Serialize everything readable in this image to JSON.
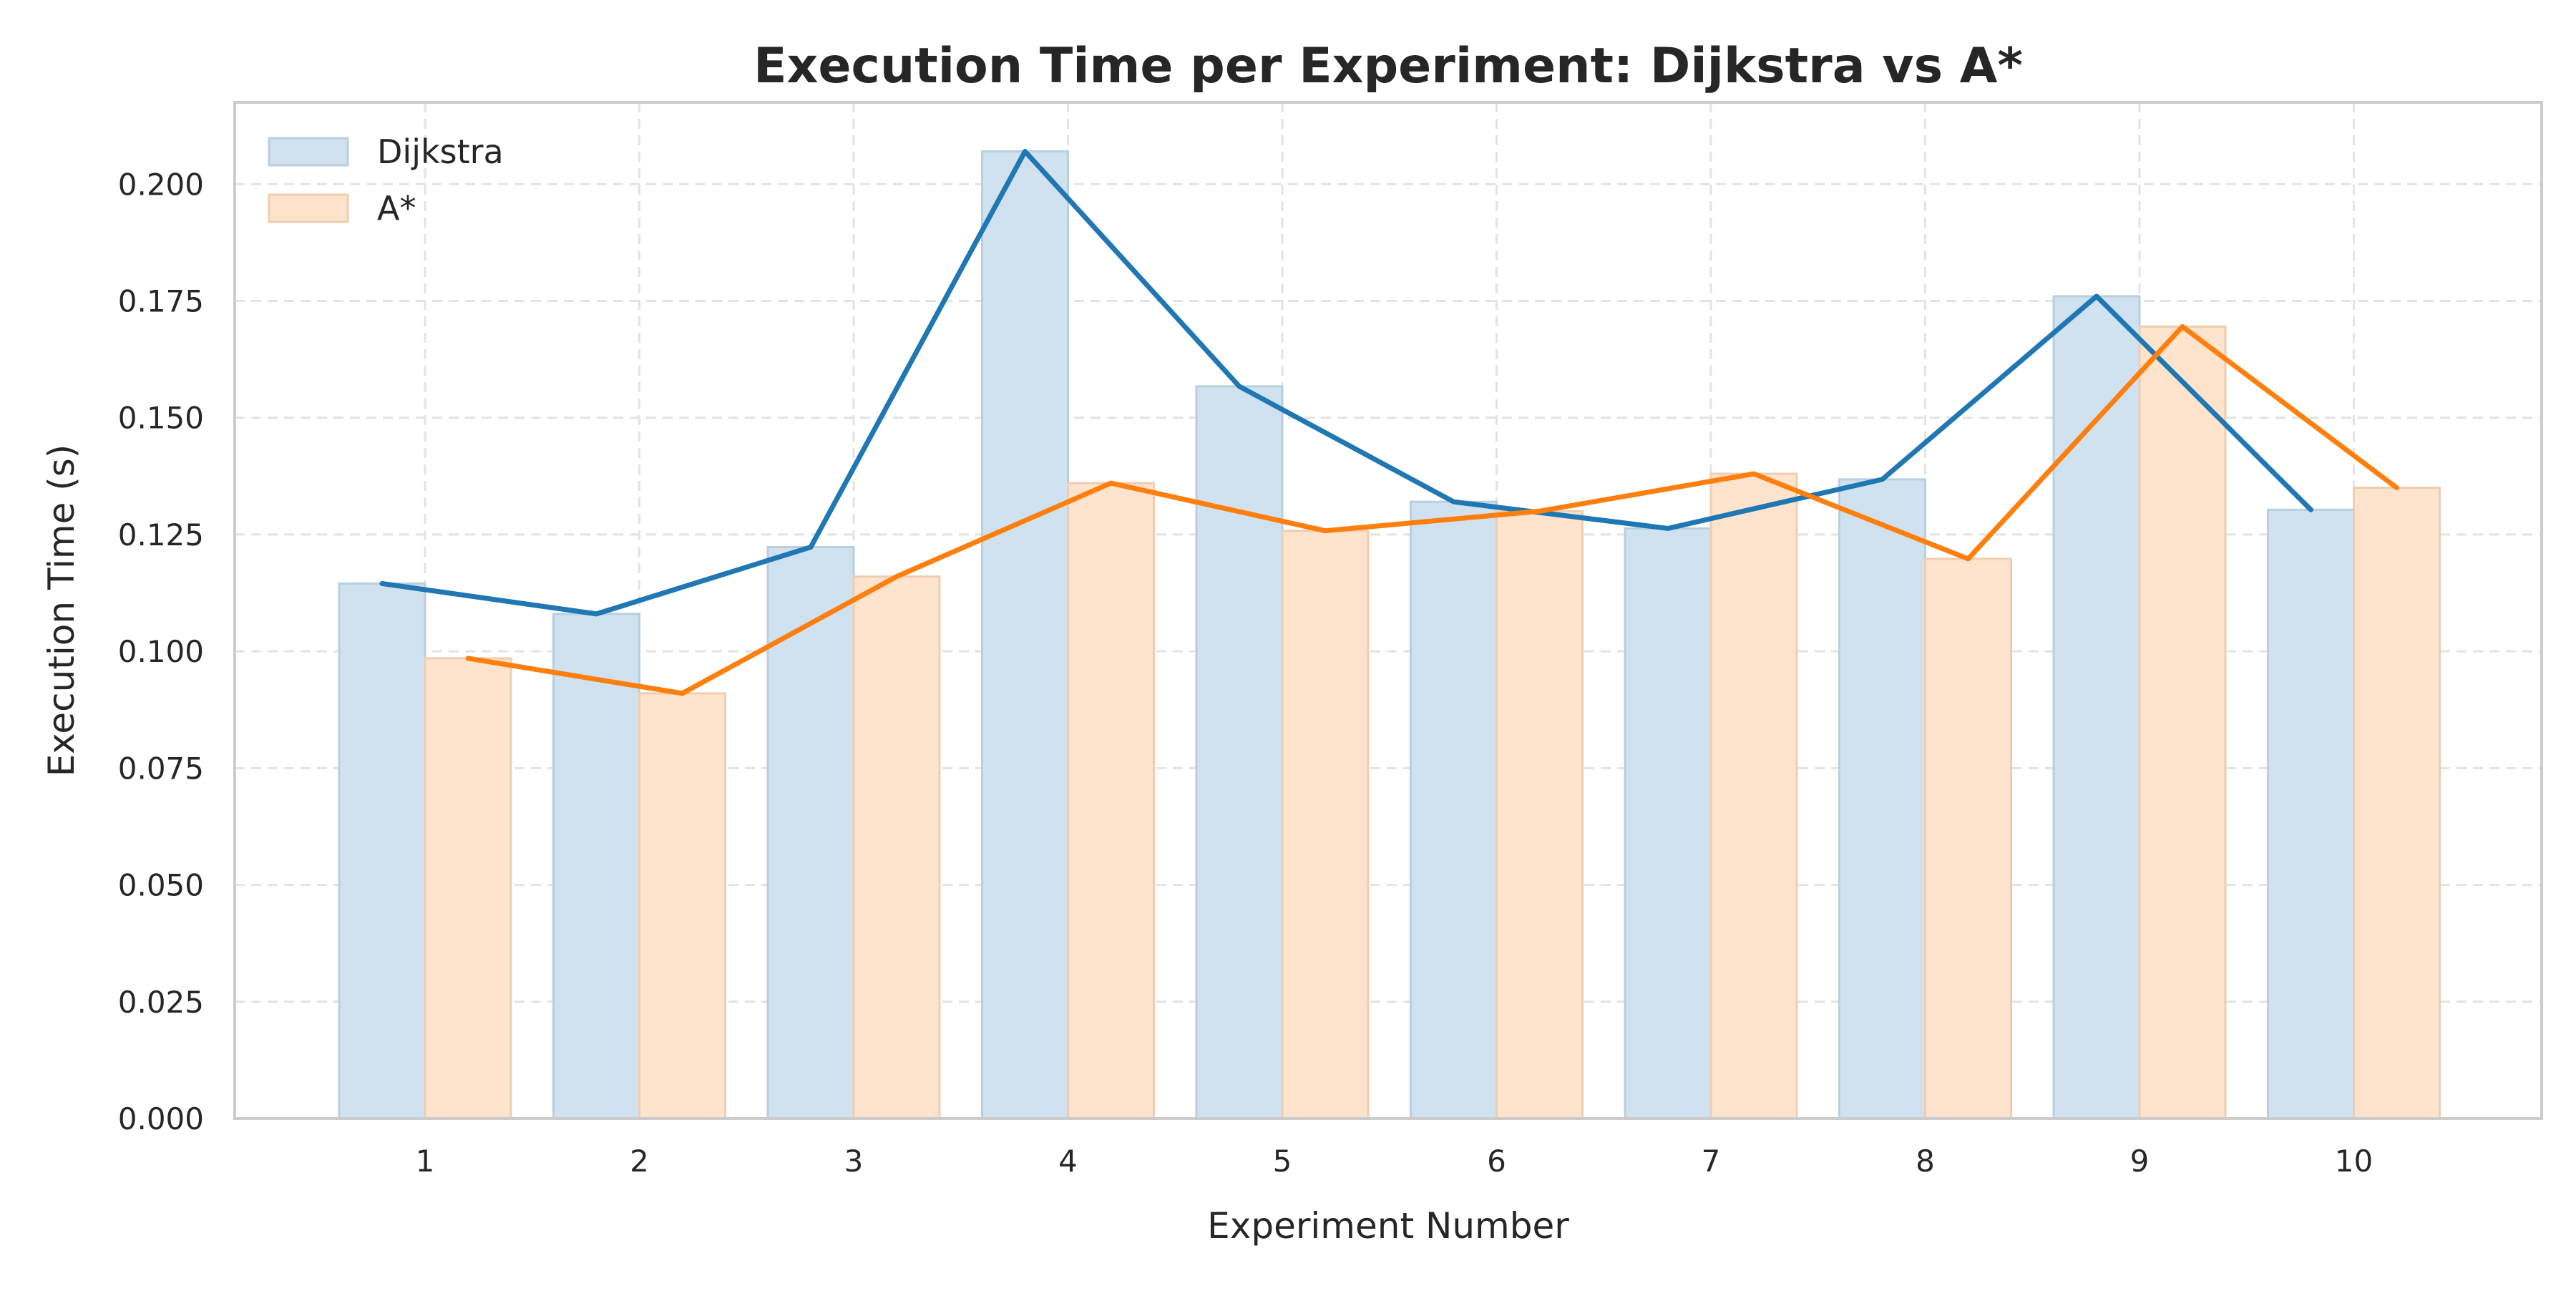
{
  "chart_data": {
    "type": "bar",
    "title": "Execution Time per Experiment: Dijkstra vs A*",
    "xlabel": "Experiment Number",
    "ylabel": "Execution Time (s)",
    "categories": [
      "1",
      "2",
      "3",
      "4",
      "5",
      "6",
      "7",
      "8",
      "9",
      "10"
    ],
    "x": [
      1,
      2,
      3,
      4,
      5,
      6,
      7,
      8,
      9,
      10
    ],
    "ylim": [
      0,
      0.2175
    ],
    "yticks": [
      "0.000",
      "0.025",
      "0.050",
      "0.075",
      "0.100",
      "0.125",
      "0.150",
      "0.175",
      "0.200"
    ],
    "series": [
      {
        "name": "Dijkstra",
        "color": "#1f77b4",
        "values": [
          0.1145,
          0.108,
          0.1223,
          0.207,
          0.1567,
          0.132,
          0.1263,
          0.1368,
          0.176,
          0.1303
        ]
      },
      {
        "name": "A*",
        "color": "#ff7f0e",
        "values": [
          0.0985,
          0.091,
          0.116,
          0.136,
          0.1258,
          0.13,
          0.138,
          0.1198,
          0.1695,
          0.135
        ]
      }
    ],
    "series_display": "bars and lines",
    "grid": true,
    "legend_position": "top-left"
  }
}
